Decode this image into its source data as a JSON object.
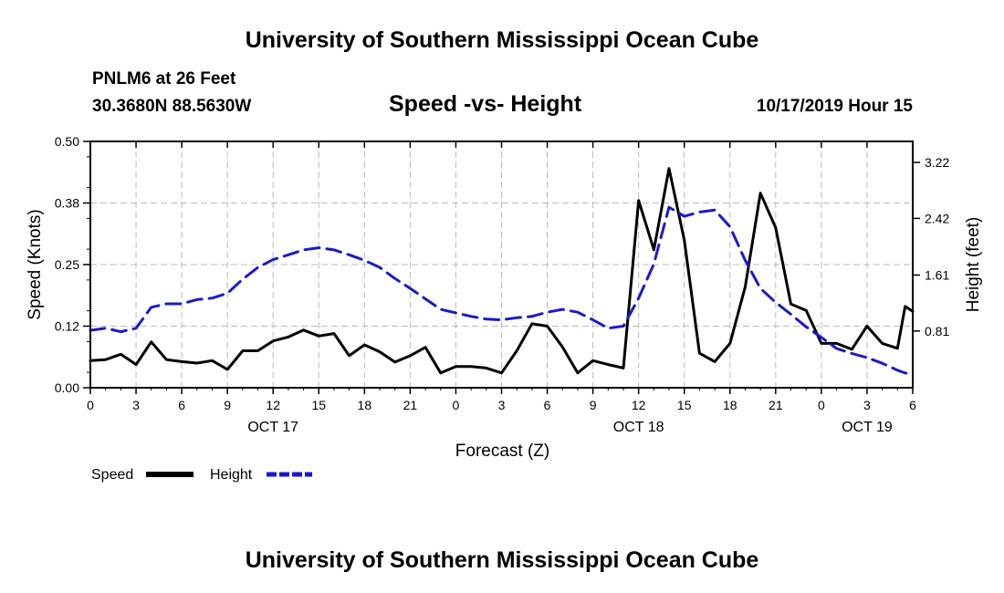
{
  "header": {
    "title": "University of Southern Mississippi Ocean Cube",
    "station": "PNLM6 at 26 Feet",
    "coordinates": "30.3680N 88.5630W",
    "timestamp": "10/17/2019 Hour 15"
  },
  "footer": {
    "title": "University of Southern Mississippi Ocean Cube"
  },
  "chart_data": {
    "type": "line",
    "title": "Speed -vs- Height",
    "xlabel": "Forecast (Z)",
    "ylabel_left": "Speed (Knots)",
    "ylabel_right": "Height (feet)",
    "x_range_hours": [
      0,
      54
    ],
    "x_tick_labels": [
      "0",
      "3",
      "6",
      "9",
      "12",
      "15",
      "18",
      "21",
      "0",
      "3",
      "6",
      "9",
      "12",
      "15",
      "18",
      "21",
      "0",
      "3",
      "6"
    ],
    "date_labels": [
      {
        "label": "OCT 17",
        "hour": 12
      },
      {
        "label": "OCT 18",
        "hour": 36
      },
      {
        "label": "OCT 19",
        "hour": 51
      }
    ],
    "y_left": {
      "range": [
        0,
        0.5
      ],
      "tick_labels": [
        "0.00",
        "0.12",
        "0.25",
        "0.38",
        "0.50"
      ]
    },
    "y_right": {
      "range": [
        0,
        3.52
      ],
      "tick_labels": [
        "0.81",
        "1.61",
        "2.42",
        "3.22"
      ],
      "tick_values": [
        0.81,
        1.61,
        2.42,
        3.22
      ]
    },
    "grid": true,
    "legend": [
      {
        "name": "Speed",
        "color": "#000000",
        "style": "solid"
      },
      {
        "name": "Height",
        "color": "#1a1acc",
        "style": "dashed"
      }
    ],
    "series": [
      {
        "name": "Speed",
        "axis": "left",
        "color": "#000000",
        "x": [
          0,
          1,
          2,
          3,
          4,
          5,
          6,
          7,
          8,
          9,
          10,
          11,
          12,
          13,
          14,
          15,
          16,
          17,
          18,
          19,
          20,
          21,
          22,
          23,
          24,
          25,
          26,
          27,
          28,
          29,
          30,
          31,
          32,
          33,
          34,
          35,
          36,
          37,
          38,
          39,
          40,
          41,
          42,
          43,
          44,
          45,
          46,
          47,
          48,
          49,
          50,
          51,
          52,
          53,
          53.5,
          54
        ],
        "values": [
          0.055,
          0.057,
          0.068,
          0.047,
          0.093,
          0.057,
          0.053,
          0.05,
          0.055,
          0.037,
          0.075,
          0.075,
          0.095,
          0.103,
          0.117,
          0.105,
          0.11,
          0.065,
          0.087,
          0.073,
          0.052,
          0.065,
          0.082,
          0.03,
          0.043,
          0.043,
          0.04,
          0.03,
          0.075,
          0.13,
          0.125,
          0.083,
          0.03,
          0.055,
          0.047,
          0.04,
          0.38,
          0.28,
          0.445,
          0.3,
          0.07,
          0.053,
          0.09,
          0.205,
          0.395,
          0.325,
          0.17,
          0.157,
          0.09,
          0.09,
          0.078,
          0.125,
          0.09,
          0.08,
          0.165,
          0.155
        ]
      },
      {
        "name": "Height",
        "axis": "right",
        "color": "#1a1acc",
        "x": [
          0,
          1,
          2,
          3,
          4,
          5,
          6,
          7,
          8,
          9,
          10,
          11,
          12,
          13,
          14,
          15,
          16,
          17,
          18,
          19,
          20,
          21,
          22,
          23,
          24,
          25,
          26,
          27,
          28,
          29,
          30,
          31,
          32,
          33,
          34,
          35,
          36,
          37,
          38,
          39,
          40,
          41,
          42,
          43,
          44,
          45,
          46,
          47,
          48,
          49,
          50,
          51,
          52,
          53,
          53.5,
          54
        ],
        "values": [
          0.82,
          0.85,
          0.8,
          0.85,
          1.15,
          1.2,
          1.2,
          1.26,
          1.28,
          1.35,
          1.55,
          1.72,
          1.83,
          1.9,
          1.97,
          2.0,
          1.97,
          1.9,
          1.82,
          1.72,
          1.56,
          1.42,
          1.27,
          1.12,
          1.07,
          1.02,
          0.98,
          0.97,
          1.0,
          1.02,
          1.08,
          1.12,
          1.08,
          0.97,
          0.85,
          0.88,
          1.28,
          1.77,
          2.58,
          2.45,
          2.51,
          2.54,
          2.3,
          1.82,
          1.42,
          1.22,
          1.05,
          0.87,
          0.72,
          0.56,
          0.49,
          0.43,
          0.35,
          0.25,
          0.21,
          0.2
        ]
      }
    ]
  }
}
